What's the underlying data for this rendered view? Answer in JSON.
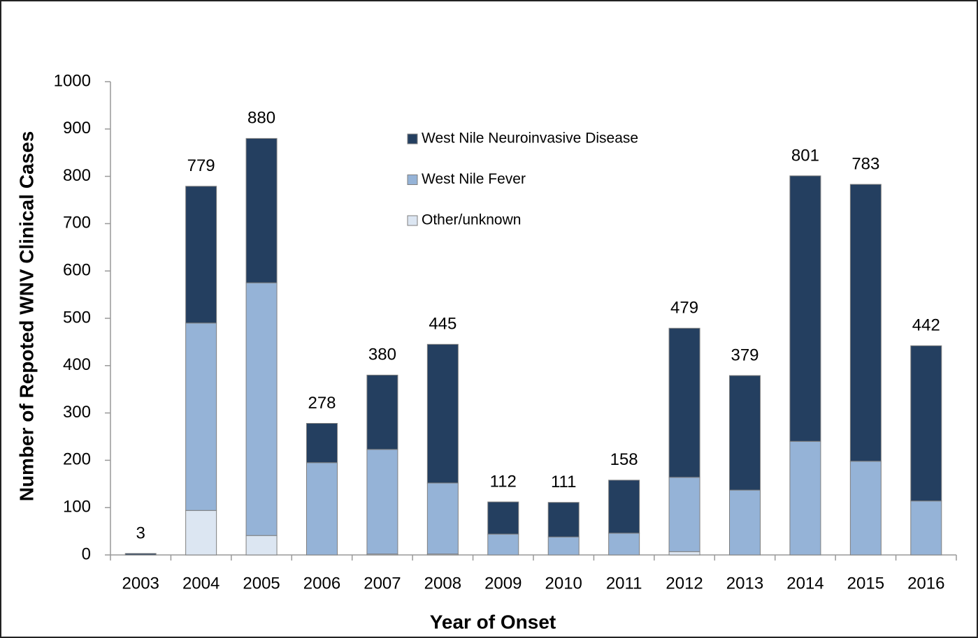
{
  "chart_data": {
    "type": "stacked_bar",
    "x_label": "Year of Onset",
    "y_label": "Number of Repoted WNV Clinical Cases",
    "categories": [
      "2003",
      "2004",
      "2005",
      "2006",
      "2007",
      "2008",
      "2009",
      "2010",
      "2011",
      "2012",
      "2013",
      "2014",
      "2015",
      "2016"
    ],
    "series": [
      {
        "name": "Other/unknown",
        "color": "#dce6f2",
        "values": [
          0,
          94,
          41,
          0,
          2,
          2,
          0,
          0,
          0,
          7,
          0,
          0,
          0,
          0
        ]
      },
      {
        "name": "West Nile Fever",
        "color": "#95b3d7",
        "values": [
          0,
          396,
          534,
          195,
          221,
          150,
          44,
          38,
          46,
          157,
          137,
          240,
          198,
          114
        ]
      },
      {
        "name": "West Nile Neuroinvasive Disease",
        "color": "#243f60",
        "values": [
          3,
          289,
          305,
          83,
          157,
          293,
          68,
          73,
          112,
          315,
          242,
          561,
          585,
          328
        ]
      }
    ],
    "totals": [
      3,
      779,
      880,
      278,
      380,
      445,
      112,
      111,
      158,
      479,
      379,
      801,
      783,
      442
    ],
    "ylim": [
      0,
      1000
    ],
    "yticks": [
      0,
      100,
      200,
      300,
      400,
      500,
      600,
      700,
      800,
      900,
      1000
    ],
    "legend": "upper center"
  }
}
